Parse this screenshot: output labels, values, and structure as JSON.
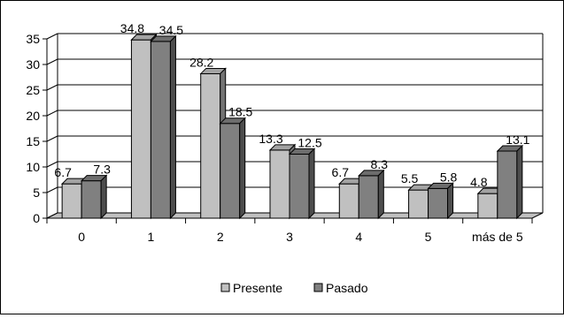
{
  "chart_data": {
    "type": "bar",
    "categories": [
      "0",
      "1",
      "2",
      "3",
      "4",
      "5",
      "más de 5"
    ],
    "series": [
      {
        "name": "Presente",
        "values": [
          6.7,
          34.8,
          28.2,
          13.3,
          6.7,
          5.5,
          4.8
        ]
      },
      {
        "name": "Pasado",
        "values": [
          7.3,
          34.5,
          18.5,
          12.5,
          8.3,
          5.8,
          13.1
        ]
      }
    ],
    "ylim": [
      0,
      35
    ],
    "yticks": [
      0,
      5,
      10,
      15,
      20,
      25,
      30,
      35
    ],
    "grid": true,
    "legend_position": "bottom",
    "colors": {
      "Presente": "#c0c0c0",
      "Pasado": "#808080",
      "floor": "#c0c0c0"
    }
  }
}
